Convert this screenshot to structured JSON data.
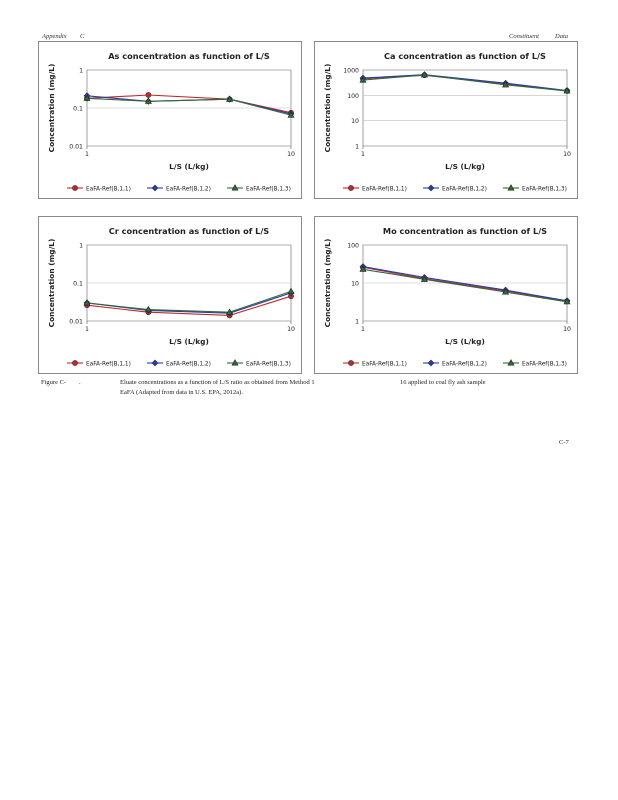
{
  "header": {
    "left_1": "Appendix",
    "left_2": "C",
    "right_1": "Constituent",
    "right_2": "Data"
  },
  "caption": {
    "label": "Figure C-",
    "sep": ".",
    "line1": "Eluate concentrations as a function of L/S ratio as obtained from Method 1",
    "line1_tail": "16 applied to coal fly ash sample",
    "line2": "EaFA (Adapted from data in U.S. EPA, 2012a)."
  },
  "page_number": "C-7",
  "colors": {
    "series1": "#c0282d",
    "series2": "#2a3ca8",
    "series3": "#2f6b3a",
    "grid": "#bdbdbd",
    "frame": "#8a8a8a"
  },
  "chart_data": [
    {
      "type": "line",
      "title": "As concentration as function of L/S",
      "xlabel": "L/S (L/kg)",
      "ylabel": "Concentration (mg/L)",
      "xscale": "log",
      "yscale": "log",
      "xlim": [
        1,
        10
      ],
      "ylim": [
        0.01,
        1
      ],
      "xticks": [
        "1",
        "10"
      ],
      "yticks": [
        "0.01",
        "0.1",
        "1"
      ],
      "legend": "bottom",
      "grid": true,
      "x": [
        1,
        2,
        5,
        10
      ],
      "series": [
        {
          "name": "EaFA-Ref(B,1,1)",
          "values": [
            0.18,
            0.22,
            0.17,
            0.075
          ]
        },
        {
          "name": "EaFA-Ref(B,1,2)",
          "values": [
            0.21,
            0.15,
            0.17,
            0.07
          ]
        },
        {
          "name": "EaFA-Ref(B,1,3)",
          "values": [
            0.18,
            0.15,
            0.17,
            0.065
          ]
        }
      ]
    },
    {
      "type": "line",
      "title": "Ca concentration as function of L/S",
      "xlabel": "L/S (L/kg)",
      "ylabel": "Concentration (mg/L)",
      "xscale": "log",
      "yscale": "log",
      "xlim": [
        1,
        10
      ],
      "ylim": [
        1,
        1000
      ],
      "xticks": [
        "1",
        "10"
      ],
      "yticks": [
        "1",
        "10",
        "100",
        "1000"
      ],
      "legend": "bottom",
      "grid": true,
      "x": [
        1,
        2,
        5,
        10
      ],
      "series": [
        {
          "name": "EaFA-Ref(B,1,1)",
          "values": [
            450,
            620,
            280,
            150
          ]
        },
        {
          "name": "EaFA-Ref(B,1,2)",
          "values": [
            480,
            650,
            300,
            155
          ]
        },
        {
          "name": "EaFA-Ref(B,1,3)",
          "values": [
            400,
            640,
            260,
            150
          ]
        }
      ]
    },
    {
      "type": "line",
      "title": "Cr concentration as function of L/S",
      "xlabel": "L/S (L/kg)",
      "ylabel": "Concentration (mg/L)",
      "xscale": "log",
      "yscale": "log",
      "xlim": [
        1,
        10
      ],
      "ylim": [
        0.01,
        1
      ],
      "xticks": [
        "1",
        "10"
      ],
      "yticks": [
        "0.01",
        "0.1",
        "1"
      ],
      "legend": "bottom",
      "grid": true,
      "x": [
        1,
        2,
        5,
        10
      ],
      "series": [
        {
          "name": "EaFA-Ref(B,1,1)",
          "values": [
            0.026,
            0.017,
            0.014,
            0.045
          ]
        },
        {
          "name": "EaFA-Ref(B,1,2)",
          "values": [
            0.03,
            0.019,
            0.016,
            0.055
          ]
        },
        {
          "name": "EaFA-Ref(B,1,3)",
          "values": [
            0.03,
            0.02,
            0.017,
            0.06
          ]
        }
      ]
    },
    {
      "type": "line",
      "title": "Mo concentration as function of L/S",
      "xlabel": "L/S (L/kg)",
      "ylabel": "Concentration (mg/L)",
      "xscale": "log",
      "yscale": "log",
      "xlim": [
        1,
        10
      ],
      "ylim": [
        1,
        100
      ],
      "xticks": [
        "1",
        "10"
      ],
      "yticks": [
        "1",
        "10",
        "100"
      ],
      "legend": "bottom",
      "grid": true,
      "x": [
        1,
        2,
        5,
        10
      ],
      "series": [
        {
          "name": "EaFA-Ref(B,1,1)",
          "values": [
            26,
            13,
            6.2,
            3.3
          ]
        },
        {
          "name": "EaFA-Ref(B,1,2)",
          "values": [
            27,
            14,
            6.5,
            3.4
          ]
        },
        {
          "name": "EaFA-Ref(B,1,3)",
          "values": [
            23,
            12.5,
            5.8,
            3.2
          ]
        }
      ]
    }
  ]
}
